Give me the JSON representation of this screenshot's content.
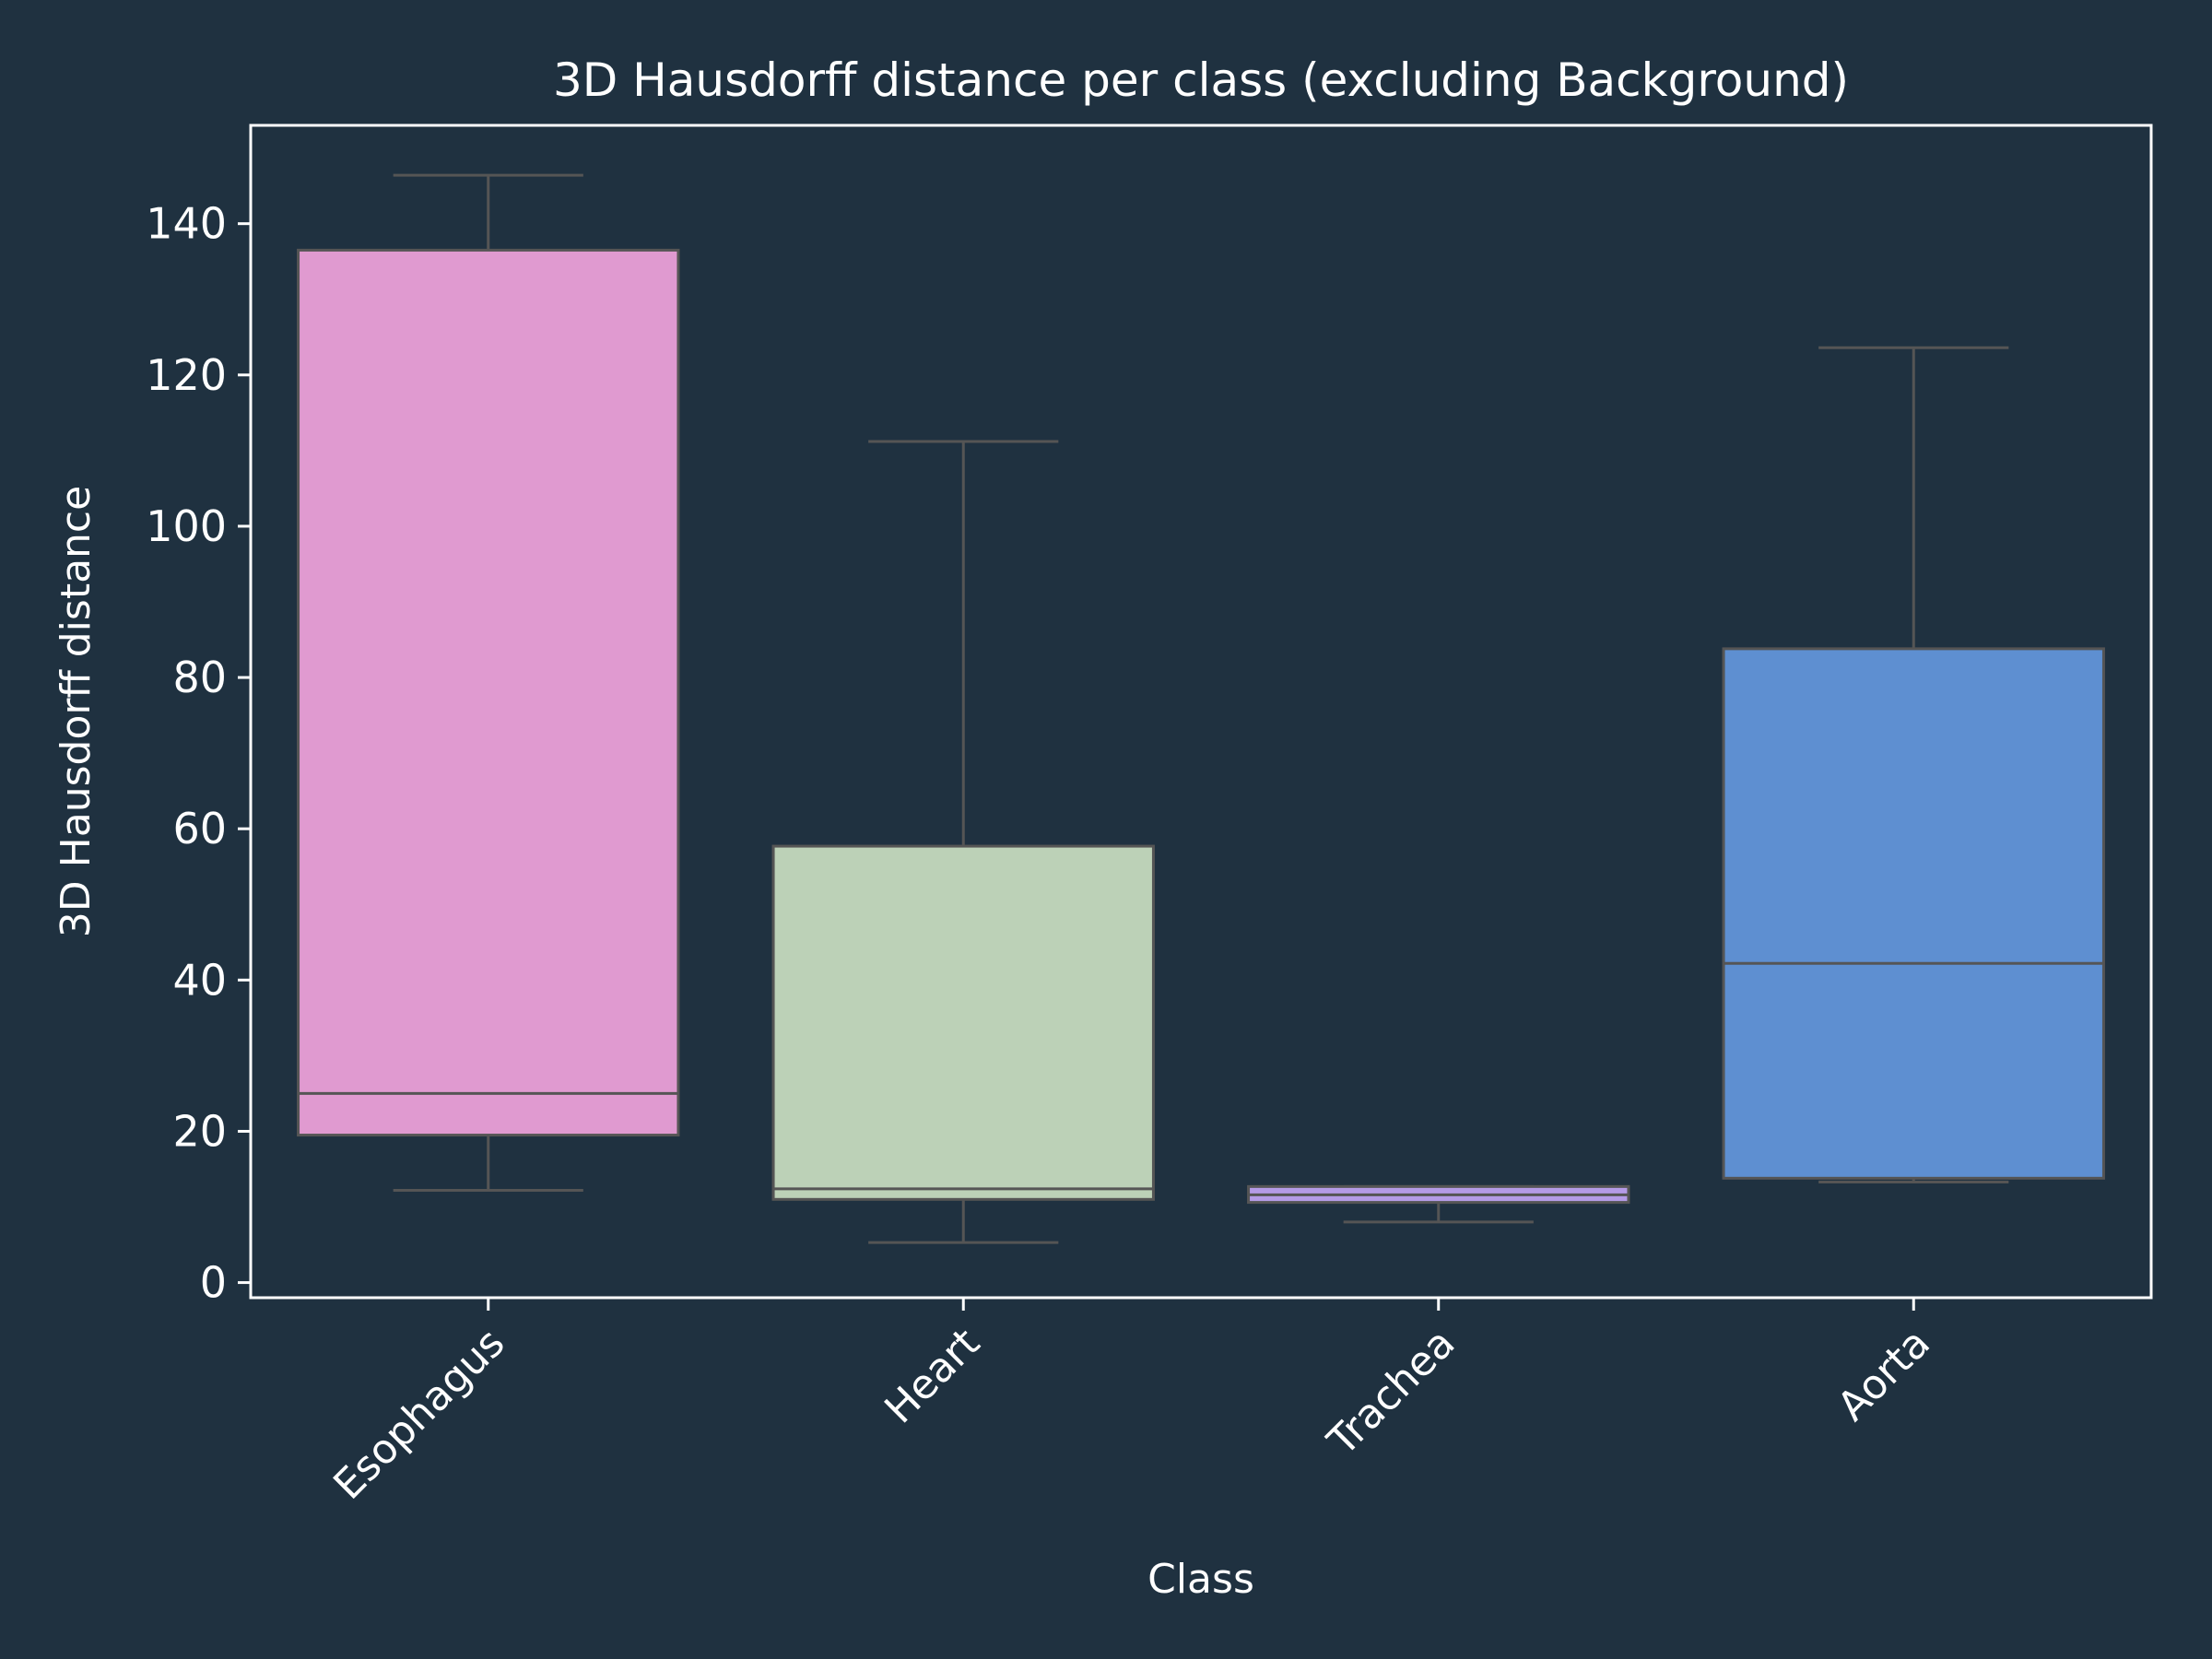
{
  "chart_data": {
    "type": "box",
    "title": "3D Hausdorff distance per class (excluding Background)",
    "xlabel": "Class",
    "ylabel": "3D Hausdorff distance",
    "ylim": [
      -2,
      153
    ],
    "yticks": [
      0,
      20,
      40,
      60,
      80,
      100,
      120,
      140
    ],
    "grid": false,
    "legend": "none",
    "colors": {
      "background": "#1f3140",
      "axes": "#ffffff",
      "box_edge": "#555555"
    },
    "categories": [
      "Esophagus",
      "Heart",
      "Trachea",
      "Aorta"
    ],
    "boxes": [
      {
        "category": "Esophagus",
        "whisker_low": 12.2,
        "q1": 19.5,
        "median": 25.0,
        "q3": 136.5,
        "whisker_high": 146.4,
        "color": "#e09ad0"
      },
      {
        "category": "Heart",
        "whisker_low": 5.3,
        "q1": 11.0,
        "median": 12.4,
        "q3": 57.7,
        "whisker_high": 111.2,
        "color": "#bcd1b7"
      },
      {
        "category": "Trachea",
        "whisker_low": 8.0,
        "q1": 10.6,
        "median": 11.6,
        "q3": 12.7,
        "whisker_high": 12.7,
        "color": "#b49be6"
      },
      {
        "category": "Aorta",
        "whisker_low": 13.3,
        "q1": 13.8,
        "median": 42.2,
        "q3": 83.8,
        "whisker_high": 123.6,
        "color": "#5e8fd1"
      }
    ]
  }
}
